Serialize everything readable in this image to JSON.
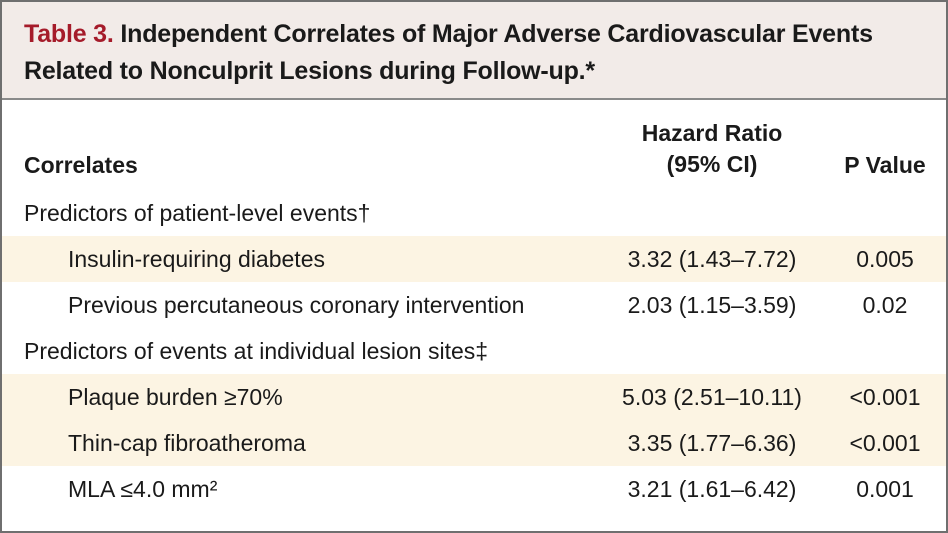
{
  "table": {
    "title_label": "Table 3.",
    "title_text_line1": "Independent Correlates of Major Adverse Cardiovascular Events",
    "title_text_line2": "Related to Nonculprit Lesions during Follow-up.*",
    "columns": {
      "correlates": "Correlates",
      "hazard_ratio_line1": "Hazard Ratio",
      "hazard_ratio_line2": "(95% CI)",
      "p_value": "P Value"
    },
    "rows": [
      {
        "type": "section",
        "label": "Predictors of patient-level events†",
        "hr": "",
        "p": ""
      },
      {
        "type": "item",
        "label": "Insulin-requiring diabetes",
        "hr": "3.32 (1.43–7.72)",
        "p": "0.005"
      },
      {
        "type": "item",
        "label": "Previous percutaneous coronary intervention",
        "hr": "2.03 (1.15–3.59)",
        "p": "0.02"
      },
      {
        "type": "section",
        "label": "Predictors of events at individual lesion sites‡",
        "hr": "",
        "p": ""
      },
      {
        "type": "item",
        "label": "Plaque burden ≥70%",
        "hr": "5.03 (2.51–10.11)",
        "p": "<0.001"
      },
      {
        "type": "item",
        "label": "Thin-cap fibroatheroma",
        "hr": "3.35 (1.77–6.36)",
        "p": "<0.001"
      },
      {
        "type": "item",
        "label": "MLA ≤4.0 mm²",
        "hr": "3.21 (1.61–6.42)",
        "p": "0.001"
      }
    ]
  },
  "colors": {
    "title_accent": "#a51b2a",
    "header_bg": "#f2ebe8",
    "row_shade": "#fcf4e3",
    "border": "#6f6f6f"
  }
}
